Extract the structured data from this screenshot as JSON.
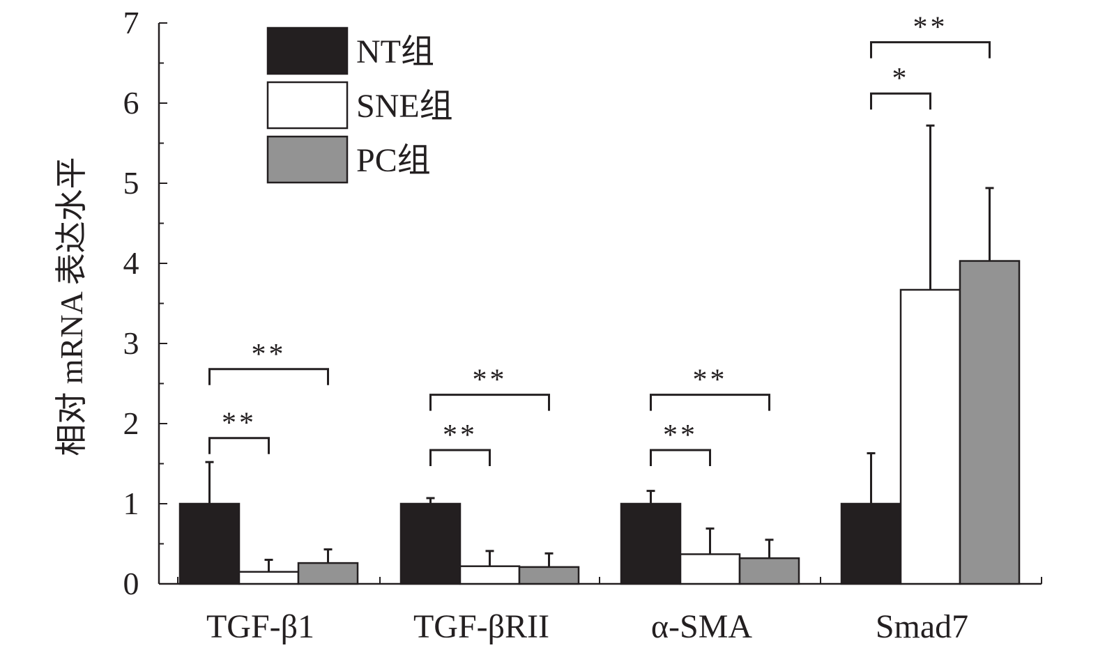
{
  "chart_data": {
    "type": "bar",
    "ylabel": "相对 mRNA 表达水平",
    "xlabel": "",
    "ylim": [
      0,
      7
    ],
    "yticks": [
      0,
      1,
      2,
      3,
      4,
      5,
      6,
      7
    ],
    "yticklabels": [
      "0",
      "1",
      "2",
      "3",
      "4",
      "5",
      "6",
      "7"
    ],
    "categories": [
      "TGF-β1",
      "TGF-βRII",
      "α-SMA",
      "Smad7"
    ],
    "series": [
      {
        "name": "NT组",
        "color": "#231f20",
        "values": [
          1.0,
          1.0,
          1.0,
          1.0
        ],
        "errors": [
          0.52,
          0.07,
          0.16,
          0.63
        ]
      },
      {
        "name": "SNE组",
        "color": "#ffffff",
        "values": [
          0.15,
          0.22,
          0.37,
          3.67
        ],
        "errors": [
          0.15,
          0.19,
          0.32,
          2.05
        ]
      },
      {
        "name": "PC组",
        "color": "#939393",
        "values": [
          0.26,
          0.21,
          0.32,
          4.03
        ],
        "errors": [
          0.17,
          0.17,
          0.23,
          0.91
        ]
      }
    ],
    "significance": [
      {
        "category": 0,
        "from": 0,
        "to": 1,
        "label": "**",
        "level": 1.82
      },
      {
        "category": 0,
        "from": 0,
        "to": 2,
        "label": "**",
        "level": 2.68
      },
      {
        "category": 1,
        "from": 0,
        "to": 1,
        "label": "**",
        "level": 1.67
      },
      {
        "category": 1,
        "from": 0,
        "to": 2,
        "label": "**",
        "level": 2.36
      },
      {
        "category": 2,
        "from": 0,
        "to": 1,
        "label": "**",
        "level": 1.67
      },
      {
        "category": 2,
        "from": 0,
        "to": 2,
        "label": "**",
        "level": 2.36
      },
      {
        "category": 3,
        "from": 0,
        "to": 1,
        "label": "*",
        "level": 6.12
      },
      {
        "category": 3,
        "from": 0,
        "to": 2,
        "label": "**",
        "level": 6.76
      }
    ],
    "legend_position": "top-left",
    "grid": false
  }
}
